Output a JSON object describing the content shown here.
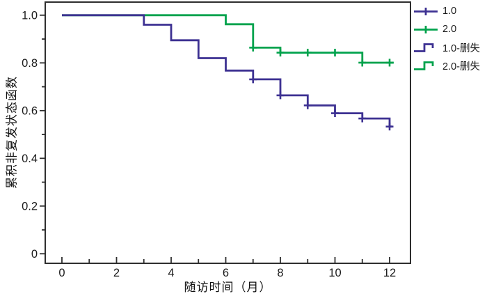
{
  "page": {
    "background": "#ffffff"
  },
  "chart_data": {
    "type": "line",
    "subtype": "kaplan-meier-step",
    "title": "",
    "xlabel": "随访时间（月）",
    "ylabel": "累积非复发状态函数",
    "xlim": [
      -0.6,
      12.75
    ],
    "ylim": [
      -0.04,
      1.055
    ],
    "grid": false,
    "frame_color": "#2e2e2e",
    "tick_label_color": "#1a1a1a",
    "x_ticks": {
      "major": [
        0,
        2,
        4,
        6,
        8,
        10,
        12
      ],
      "major_labels": [
        "0",
        "2",
        "4",
        "6",
        "8",
        "10",
        "12"
      ],
      "minor": [
        1,
        3,
        5,
        7,
        9,
        11
      ]
    },
    "y_ticks": {
      "major": [
        1.0,
        0.8,
        0.6,
        0.4,
        0.2,
        0
      ],
      "major_labels": [
        "1.0",
        "0.8",
        "0.6",
        "0.4",
        "0.2",
        "0"
      ],
      "minor": [
        0.9,
        0.7,
        0.5,
        0.3,
        0.1
      ]
    },
    "series": [
      {
        "name": "2.0",
        "color": "#00A24C",
        "points": [
          [
            0,
            1.0
          ],
          [
            6,
            1.0
          ],
          [
            6,
            0.962
          ],
          [
            7,
            0.962
          ],
          [
            7,
            0.864
          ],
          [
            8,
            0.864
          ],
          [
            8,
            0.843
          ],
          [
            11,
            0.843
          ],
          [
            11,
            0.801
          ],
          [
            12.15,
            0.801
          ]
        ],
        "censored": [
          [
            7,
            0.864
          ],
          [
            8,
            0.843
          ],
          [
            9,
            0.843
          ],
          [
            10,
            0.843
          ],
          [
            11,
            0.801
          ],
          [
            12,
            0.801
          ]
        ]
      },
      {
        "name": "1.0",
        "color": "#3D3192",
        "points": [
          [
            0,
            1.0
          ],
          [
            3,
            1.0
          ],
          [
            3,
            0.96
          ],
          [
            4,
            0.96
          ],
          [
            4,
            0.895
          ],
          [
            5,
            0.895
          ],
          [
            5,
            0.82
          ],
          [
            6,
            0.82
          ],
          [
            6,
            0.768
          ],
          [
            7,
            0.768
          ],
          [
            7,
            0.731
          ],
          [
            8,
            0.731
          ],
          [
            8,
            0.664
          ],
          [
            9,
            0.664
          ],
          [
            9,
            0.622
          ],
          [
            10,
            0.622
          ],
          [
            10,
            0.589
          ],
          [
            11,
            0.589
          ],
          [
            11,
            0.567
          ],
          [
            12,
            0.567
          ],
          [
            12,
            0.533
          ],
          [
            12.1,
            0.533
          ]
        ],
        "censored": [
          [
            7,
            0.731
          ],
          [
            8,
            0.664
          ],
          [
            9,
            0.622
          ],
          [
            10,
            0.589
          ],
          [
            11,
            0.567
          ],
          [
            12,
            0.533
          ]
        ]
      }
    ],
    "legend": {
      "position": "top-right",
      "items": [
        {
          "label": "1.0",
          "color": "#3D3192",
          "sample": "line-plus"
        },
        {
          "label": "2.0",
          "color": "#00A24C",
          "sample": "line-plus"
        },
        {
          "label": "1.0-删失",
          "color": "#3D3192",
          "sample": "step"
        },
        {
          "label": "2.0-删失",
          "color": "#00A24C",
          "sample": "step"
        }
      ]
    }
  }
}
